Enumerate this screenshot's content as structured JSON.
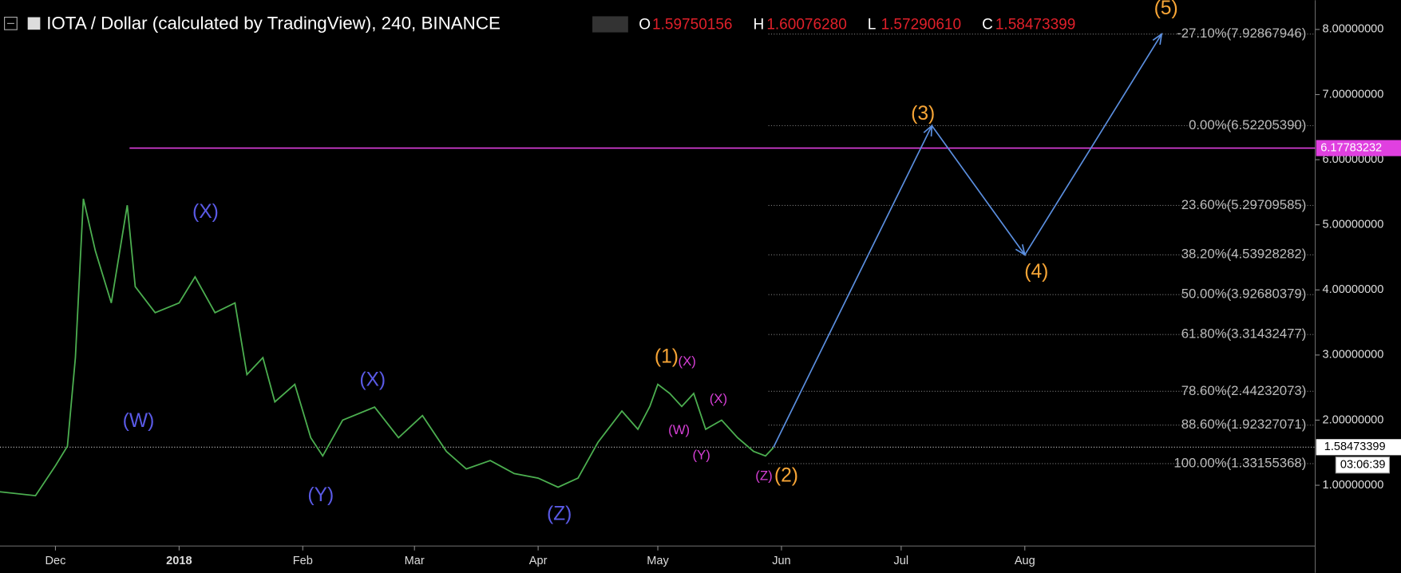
{
  "header": {
    "title": "IOTA / Dollar (calculated by TradingView), 240, BINANCE",
    "ohlc": [
      {
        "key": "O",
        "text": "1.59750156"
      },
      {
        "key": "H",
        "text": "1.60076280"
      },
      {
        "key": "L",
        "text": "1.57290610"
      },
      {
        "key": "C",
        "text": "1.58473399"
      }
    ]
  },
  "chart_data": {
    "type": "line",
    "xlim": [
      -13.9,
      315.8
    ],
    "ylim": [
      0.081,
      8.449
    ],
    "xticks": [
      {
        "value": 0,
        "label": "Dec"
      },
      {
        "value": 31,
        "label": "2018"
      },
      {
        "value": 62,
        "label": "Feb"
      },
      {
        "value": 90,
        "label": "Mar"
      },
      {
        "value": 121,
        "label": "Apr"
      },
      {
        "value": 151,
        "label": "May"
      },
      {
        "value": 182,
        "label": "Jun"
      },
      {
        "value": 212,
        "label": "Jul"
      },
      {
        "value": 243,
        "label": "Aug"
      }
    ],
    "yticks": [
      {
        "value": 1,
        "label": "1.00000000"
      },
      {
        "value": 2,
        "label": "2.00000000"
      },
      {
        "value": 3,
        "label": "3.00000000"
      },
      {
        "value": 4,
        "label": "4.00000000"
      },
      {
        "value": 5,
        "label": "5.00000000"
      },
      {
        "value": 6,
        "label": "6.00000000"
      },
      {
        "value": 7,
        "label": "7.00000000"
      },
      {
        "value": 8,
        "label": "8.00000000"
      }
    ],
    "series": [
      {
        "name": "IOTA",
        "color": "#4caf50",
        "x": [
          -14,
          -5,
          0,
          3,
          5,
          7,
          10,
          14,
          18,
          20,
          25,
          31,
          35,
          40,
          45,
          48,
          52,
          55,
          60,
          64,
          67,
          72,
          80,
          86,
          92,
          98,
          103,
          109,
          115,
          121,
          126,
          131,
          136,
          142,
          146,
          149,
          151,
          154,
          157,
          160,
          163,
          167,
          171,
          175,
          178,
          180
        ],
        "values": [
          0.9,
          0.84,
          1.3,
          1.6,
          2.96,
          5.4,
          4.6,
          3.8,
          5.3,
          4.05,
          3.65,
          3.8,
          4.2,
          3.65,
          3.8,
          2.7,
          2.96,
          2.28,
          2.55,
          1.73,
          1.45,
          2.0,
          2.2,
          1.73,
          2.07,
          1.52,
          1.25,
          1.38,
          1.18,
          1.11,
          0.97,
          1.11,
          1.66,
          2.14,
          1.86,
          2.21,
          2.55,
          2.41,
          2.21,
          2.41,
          1.86,
          2.0,
          1.73,
          1.52,
          1.45,
          1.58
        ]
      },
      {
        "name": "Projection",
        "color": "#5b8fe0",
        "x": [
          180,
          219.7,
          243,
          277.3
        ],
        "values": [
          1.58473399,
          6.5220539,
          4.53928282,
          7.92867946
        ]
      }
    ],
    "fib_levels": [
      {
        "label": "-27.10%(7.92867946)",
        "value": 7.92867946
      },
      {
        "label": "0.00%(6.52205390)",
        "value": 6.5220539
      },
      {
        "label": "23.60%(5.29709585)",
        "value": 5.29709585
      },
      {
        "label": "38.20%(4.53928282)",
        "value": 4.53928282
      },
      {
        "label": "50.00%(3.92680379)",
        "value": 3.92680379
      },
      {
        "label": "61.80%(3.31432477)",
        "value": 3.31432477
      },
      {
        "label": "78.60%(2.44232073)",
        "value": 2.44232073
      },
      {
        "label": "88.60%(1.92327071)",
        "value": 1.92327071
      },
      {
        "label": "100.00%(1.33155368)",
        "value": 1.33155368
      }
    ],
    "resistance": {
      "value": 6.17783232,
      "color": "#e040e0"
    },
    "last_price": {
      "value": 1.58473399,
      "countdown": "03:06:39"
    },
    "annotations": [
      {
        "text": "(5)",
        "color": "#f7a536"
      },
      {
        "text": "(3)",
        "color": "#f7a536"
      },
      {
        "text": "(4)",
        "color": "#f7a536"
      },
      {
        "text": "(1)",
        "color": "#f7a536"
      },
      {
        "text": "(2)",
        "color": "#f7a536"
      },
      {
        "text": "(X)",
        "color": "#5a5ae6"
      },
      {
        "text": "(W)",
        "color": "#5a5ae6"
      },
      {
        "text": "(X)",
        "color": "#5a5ae6"
      },
      {
        "text": "(Y)",
        "color": "#5a5ae6"
      },
      {
        "text": "(Z)",
        "color": "#5a5ae6"
      },
      {
        "text": "(X)",
        "color": "#d63fd6"
      },
      {
        "text": "(X)",
        "color": "#d63fd6"
      },
      {
        "text": "(W)",
        "color": "#d63fd6"
      },
      {
        "text": "(Y)",
        "color": "#d63fd6"
      },
      {
        "text": "(Z)",
        "color": "#d63fd6"
      }
    ]
  }
}
